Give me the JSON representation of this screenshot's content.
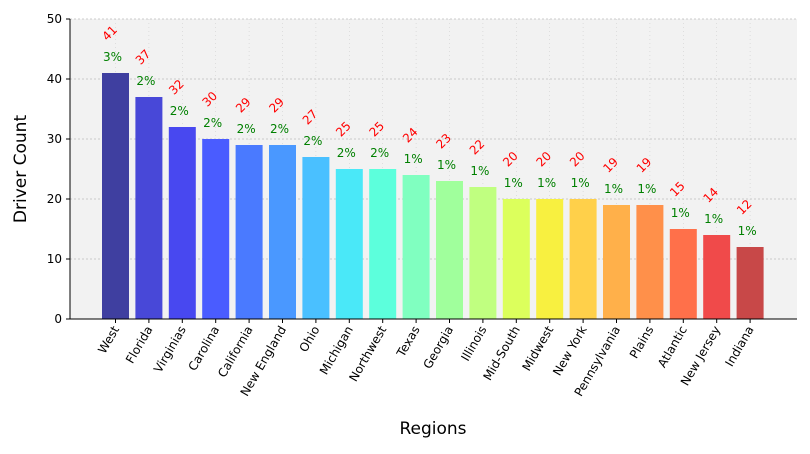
{
  "chart_data": {
    "type": "bar",
    "title": "",
    "xlabel": "Regions",
    "ylabel": "Driver Count",
    "ylim": [
      0,
      50
    ],
    "yticks": [
      0,
      10,
      20,
      30,
      40,
      50
    ],
    "grid": true,
    "categories": [
      "West",
      "Florida",
      "Virginias",
      "Carolina",
      "California",
      "New England",
      "Ohio",
      "Michigan",
      "Northwest",
      "Texas",
      "Georgia",
      "Illinois",
      "Mid-South",
      "Midwest",
      "New York",
      "Pennsylvania",
      "Plains",
      "Atlantic",
      "New Jersey",
      "Indiana"
    ],
    "values": [
      41,
      37,
      32,
      30,
      29,
      29,
      27,
      25,
      25,
      24,
      23,
      22,
      20,
      20,
      20,
      19,
      19,
      15,
      14,
      12
    ],
    "percent_labels": [
      "3%",
      "2%",
      "2%",
      "2%",
      "2%",
      "2%",
      "2%",
      "2%",
      "2%",
      "1%",
      "1%",
      "1%",
      "1%",
      "1%",
      "1%",
      "1%",
      "1%",
      "1%",
      "1%",
      "1%"
    ],
    "value_label_color": "#ff0000",
    "percent_label_color": "#008000",
    "bar_colors": [
      "#3f3fa0",
      "#4848d8",
      "#4848f0",
      "#4a5cff",
      "#4a7aff",
      "#4a98ff",
      "#4ac0ff",
      "#4ae8f8",
      "#5cffdc",
      "#80ffc0",
      "#a0ff9c",
      "#c0ff80",
      "#dcff5c",
      "#f8f040",
      "#ffd04a",
      "#ffb04a",
      "#ff904a",
      "#ff704a",
      "#f04a4a",
      "#c84848"
    ],
    "background_color": "#f2f2f2"
  }
}
